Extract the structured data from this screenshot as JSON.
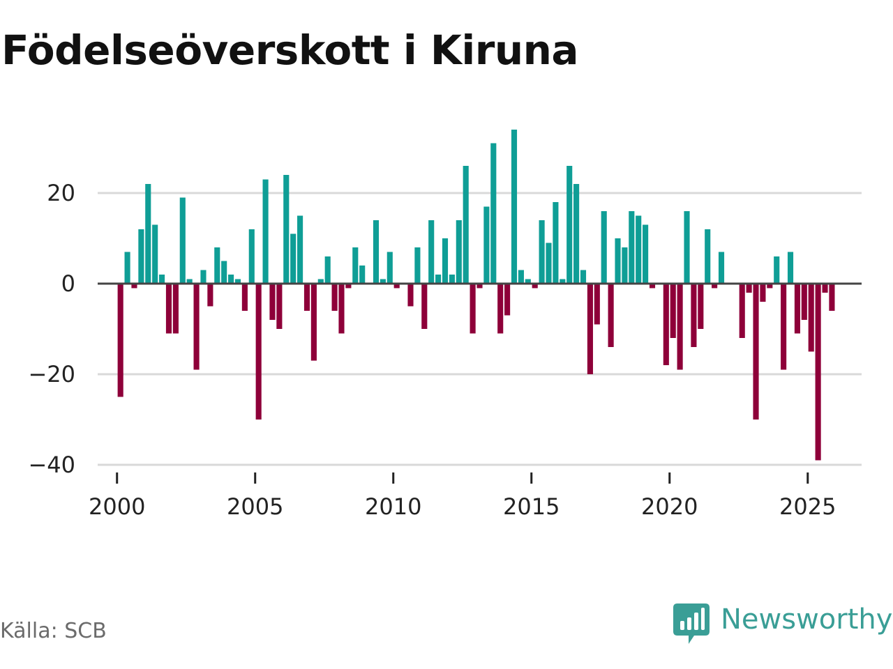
{
  "title": "Födelseöverskott i Kiruna",
  "source": "Källa: SCB",
  "brand": {
    "name": "Newsworthy",
    "color": "#3a9e96"
  },
  "colors": {
    "positive": "#0f9e96",
    "negative": "#8e0039",
    "grid": "#d9d9d9",
    "zero_line": "#444444"
  },
  "chart_data": {
    "type": "bar",
    "title": "Födelseöverskott i Kiruna",
    "xlabel": "",
    "ylabel": "",
    "ylim": [
      -42,
      38
    ],
    "xlim": [
      1999.3,
      2026.95
    ],
    "yticks": [
      -40,
      -20,
      0,
      20
    ],
    "ytick_labels": [
      "−40",
      "−20",
      "0",
      "20"
    ],
    "xticks": [
      2000,
      2005,
      2010,
      2015,
      2020,
      2025
    ],
    "xtick_labels": [
      "2000",
      "2005",
      "2010",
      "2015",
      "2020",
      "2025"
    ],
    "grid": true,
    "legend": "none",
    "bar_width_years": 0.2,
    "start_year": 2000,
    "start_quarter": 1,
    "period": "quarter",
    "values": [
      -25,
      7,
      -1,
      12,
      22,
      13,
      2,
      -11,
      -11,
      19,
      1,
      -19,
      3,
      -5,
      8,
      5,
      2,
      1,
      -6,
      12,
      -30,
      23,
      -8,
      -10,
      24,
      11,
      15,
      -6,
      -17,
      1,
      6,
      -6,
      -11,
      -1,
      8,
      4,
      0,
      14,
      1,
      7,
      -1,
      0,
      -5,
      8,
      -10,
      14,
      2,
      10,
      2,
      14,
      26,
      -11,
      -1,
      17,
      31,
      -11,
      -7,
      34,
      3,
      1,
      -1,
      14,
      9,
      18,
      1,
      26,
      22,
      3,
      -20,
      -9,
      16,
      -14,
      10,
      8,
      16,
      15,
      13,
      -1,
      0,
      -18,
      -12,
      -19,
      16,
      -14,
      -10,
      12,
      -1,
      7,
      0,
      0,
      -12,
      -2,
      -30,
      -4,
      -1,
      6,
      -19,
      7,
      -11,
      -8,
      -15,
      -39,
      -2,
      -6
    ]
  }
}
